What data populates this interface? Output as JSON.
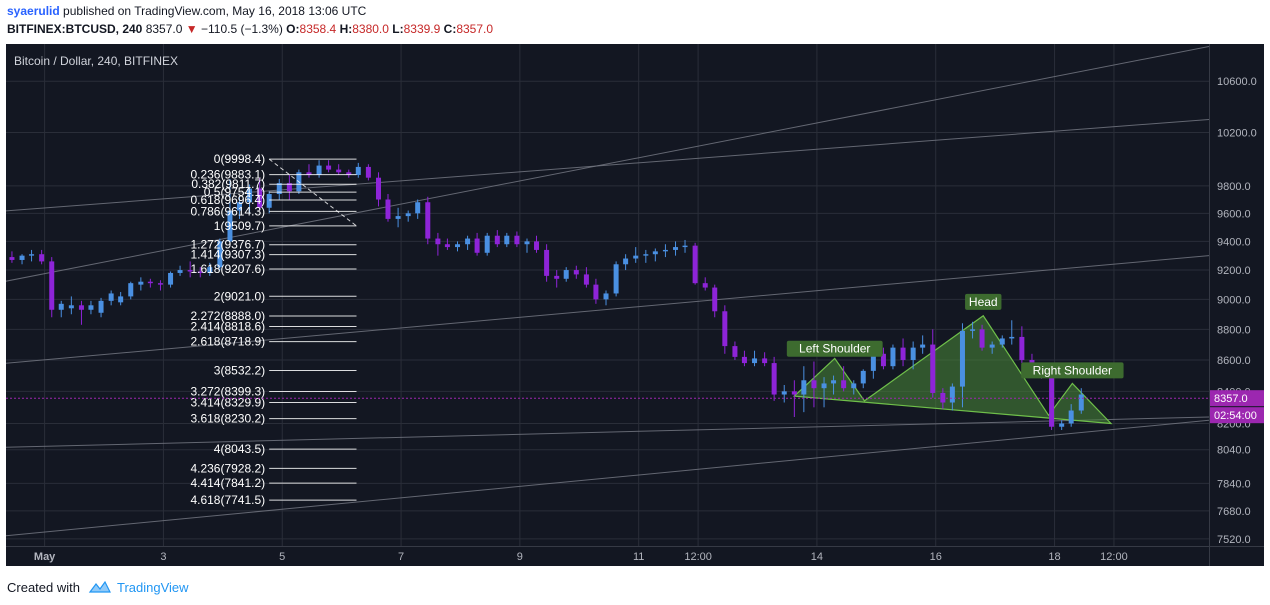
{
  "header": {
    "author": "syaerulid",
    "published": "published on TradingView.com, May 16, 2018 13:06 UTC",
    "symbol": "BITFINEX:BTCUSD, 240",
    "last": "8357.0",
    "change": "−110.5 (−1.3%)",
    "o_label": "O:",
    "o_value": "8358.4",
    "h_label": "H:",
    "h_value": "8380.0",
    "l_label": "L:",
    "l_value": "8339.9",
    "c_label": "C:",
    "c_value": "8357.0"
  },
  "footer": {
    "created_with": "Created with",
    "brand": "TradingView"
  },
  "colors": {
    "background": "#131722",
    "grid": "#2a2e39",
    "text": "#b2b5be",
    "up": "#4a90e2",
    "down": "#8e24d8",
    "pattern_fill": "#4a8a38",
    "pattern_stroke": "#6fbf4a",
    "price_line": "#9c27b0",
    "channel": "#787b86"
  },
  "chart_data": {
    "type": "candlestick",
    "title": "Bitcoin / Dollar, 240, BITFINEX",
    "price_scale": "log",
    "ylim": [
      7480,
      10900
    ],
    "xlim": [
      0.35,
      20.6
    ],
    "y_ticks": [
      7520,
      7680,
      7840,
      8040,
      8200,
      8400,
      8600,
      8800,
      9000,
      9200,
      9400,
      9600,
      9800,
      10200,
      10600
    ],
    "y_tick_labels": [
      "7520.0",
      "7680.0",
      "7840.0",
      "8040.0",
      "8200.0",
      "8400.0",
      "8600.0",
      "8800.0",
      "9000.0",
      "9200.0",
      "9400.0",
      "9600.0",
      "9800.0",
      "10200.0",
      "10600.0"
    ],
    "x_ticks": [
      {
        "x": 1,
        "label": "May"
      },
      {
        "x": 3,
        "label": "3"
      },
      {
        "x": 5,
        "label": "5"
      },
      {
        "x": 7,
        "label": "7"
      },
      {
        "x": 9,
        "label": "9"
      },
      {
        "x": 11,
        "label": "11"
      },
      {
        "x": 12,
        "label": "12:00"
      },
      {
        "x": 14,
        "label": "14"
      },
      {
        "x": 16,
        "label": "16"
      },
      {
        "x": 18,
        "label": "18"
      },
      {
        "x": 19,
        "label": "12:00"
      }
    ],
    "candles": [
      [
        0.45,
        9290,
        9330,
        9250,
        9270
      ],
      [
        0.62,
        9270,
        9310,
        9240,
        9300
      ],
      [
        0.78,
        9300,
        9340,
        9260,
        9310
      ],
      [
        0.95,
        9310,
        9340,
        9240,
        9260
      ],
      [
        1.12,
        9260,
        9290,
        8880,
        8930
      ],
      [
        1.28,
        8930,
        8990,
        8880,
        8970
      ],
      [
        1.45,
        8940,
        9020,
        8900,
        8960
      ],
      [
        1.62,
        8960,
        8990,
        8830,
        8930
      ],
      [
        1.78,
        8930,
        8990,
        8900,
        8960
      ],
      [
        1.95,
        8910,
        9010,
        8880,
        8990
      ],
      [
        2.12,
        8990,
        9060,
        8960,
        9040
      ],
      [
        2.28,
        8980,
        9050,
        8960,
        9020
      ],
      [
        2.45,
        9020,
        9120,
        9000,
        9110
      ],
      [
        2.62,
        9100,
        9150,
        9060,
        9120
      ],
      [
        2.78,
        9120,
        9140,
        9080,
        9110
      ],
      [
        2.95,
        9110,
        9130,
        9060,
        9100
      ],
      [
        3.12,
        9100,
        9190,
        9080,
        9180
      ],
      [
        3.28,
        9180,
        9230,
        9160,
        9200
      ],
      [
        3.45,
        9200,
        9260,
        9150,
        9190
      ],
      [
        3.62,
        9190,
        9220,
        9150,
        9180
      ],
      [
        3.78,
        9180,
        9250,
        9160,
        9220
      ],
      [
        3.95,
        9220,
        9420,
        9200,
        9400
      ],
      [
        4.12,
        9400,
        9850,
        9380,
        9620
      ],
      [
        4.28,
        9620,
        9720,
        9560,
        9680
      ],
      [
        4.45,
        9680,
        9810,
        9600,
        9780
      ],
      [
        4.62,
        9780,
        9860,
        9620,
        9640
      ],
      [
        4.78,
        9640,
        9760,
        9600,
        9740
      ],
      [
        4.95,
        9740,
        9850,
        9700,
        9820
      ],
      [
        5.12,
        9820,
        9880,
        9700,
        9760
      ],
      [
        5.28,
        9760,
        9920,
        9740,
        9900
      ],
      [
        5.45,
        9900,
        9960,
        9860,
        9880
      ],
      [
        5.62,
        9880,
        9990,
        9860,
        9950
      ],
      [
        5.78,
        9950,
        9990,
        9900,
        9920
      ],
      [
        5.95,
        9920,
        9960,
        9880,
        9900
      ],
      [
        6.12,
        9900,
        9920,
        9860,
        9880
      ],
      [
        6.28,
        9880,
        9970,
        9860,
        9940
      ],
      [
        6.45,
        9940,
        9960,
        9840,
        9860
      ],
      [
        6.62,
        9860,
        9900,
        9650,
        9700
      ],
      [
        6.78,
        9700,
        9740,
        9540,
        9560
      ],
      [
        6.95,
        9560,
        9640,
        9500,
        9580
      ],
      [
        7.12,
        9580,
        9620,
        9540,
        9600
      ],
      [
        7.28,
        9600,
        9700,
        9560,
        9680
      ],
      [
        7.45,
        9680,
        9720,
        9380,
        9420
      ],
      [
        7.62,
        9420,
        9460,
        9300,
        9380
      ],
      [
        7.78,
        9380,
        9420,
        9340,
        9360
      ],
      [
        7.95,
        9360,
        9400,
        9330,
        9380
      ],
      [
        8.12,
        9380,
        9440,
        9340,
        9420
      ],
      [
        8.28,
        9420,
        9460,
        9300,
        9320
      ],
      [
        8.45,
        9320,
        9460,
        9300,
        9440
      ],
      [
        8.62,
        9440,
        9480,
        9360,
        9380
      ],
      [
        8.78,
        9380,
        9460,
        9360,
        9440
      ],
      [
        8.95,
        9440,
        9470,
        9360,
        9380
      ],
      [
        9.12,
        9380,
        9420,
        9320,
        9400
      ],
      [
        9.28,
        9400,
        9440,
        9320,
        9340
      ],
      [
        9.45,
        9340,
        9380,
        9120,
        9160
      ],
      [
        9.62,
        9160,
        9200,
        9080,
        9140
      ],
      [
        9.78,
        9140,
        9220,
        9120,
        9200
      ],
      [
        9.95,
        9200,
        9230,
        9140,
        9170
      ],
      [
        10.12,
        9170,
        9220,
        9080,
        9100
      ],
      [
        10.28,
        9100,
        9140,
        8970,
        9000
      ],
      [
        10.45,
        9000,
        9060,
        8960,
        9040
      ],
      [
        10.62,
        9040,
        9260,
        9020,
        9240
      ],
      [
        10.78,
        9240,
        9310,
        9200,
        9280
      ],
      [
        10.95,
        9280,
        9360,
        9250,
        9300
      ],
      [
        11.12,
        9300,
        9340,
        9250,
        9310
      ],
      [
        11.28,
        9310,
        9350,
        9260,
        9330
      ],
      [
        11.45,
        9330,
        9380,
        9290,
        9340
      ],
      [
        11.62,
        9340,
        9400,
        9300,
        9360
      ],
      [
        11.78,
        9360,
        9410,
        9320,
        9370
      ],
      [
        11.95,
        9370,
        9390,
        9100,
        9110
      ],
      [
        12.12,
        9110,
        9150,
        9060,
        9080
      ],
      [
        12.28,
        9080,
        9100,
        8880,
        8920
      ],
      [
        12.45,
        8920,
        8960,
        8640,
        8690
      ],
      [
        12.62,
        8690,
        8720,
        8600,
        8620
      ],
      [
        12.78,
        8620,
        8660,
        8560,
        8580
      ],
      [
        12.95,
        8580,
        8660,
        8560,
        8610
      ],
      [
        13.12,
        8610,
        8650,
        8560,
        8580
      ],
      [
        13.28,
        8580,
        8620,
        8340,
        8380
      ],
      [
        13.45,
        8380,
        8440,
        8330,
        8400
      ],
      [
        13.62,
        8400,
        8470,
        8240,
        8380
      ],
      [
        13.78,
        8380,
        8560,
        8270,
        8470
      ],
      [
        13.95,
        8470,
        8590,
        8300,
        8420
      ],
      [
        14.12,
        8420,
        8490,
        8300,
        8450
      ],
      [
        14.28,
        8450,
        8500,
        8380,
        8470
      ],
      [
        14.45,
        8470,
        8560,
        8400,
        8420
      ],
      [
        14.62,
        8420,
        8470,
        8380,
        8450
      ],
      [
        14.78,
        8450,
        8540,
        8420,
        8530
      ],
      [
        14.95,
        8530,
        8660,
        8480,
        8640
      ],
      [
        15.12,
        8640,
        8680,
        8540,
        8560
      ],
      [
        15.28,
        8560,
        8700,
        8540,
        8680
      ],
      [
        15.45,
        8680,
        8740,
        8560,
        8600
      ],
      [
        15.62,
        8600,
        8720,
        8540,
        8680
      ],
      [
        15.78,
        8680,
        8760,
        8640,
        8700
      ],
      [
        15.95,
        8700,
        8800,
        8360,
        8390
      ],
      [
        16.12,
        8390,
        8420,
        8290,
        8330
      ],
      [
        16.28,
        8330,
        8450,
        8280,
        8430
      ],
      [
        16.45,
        8430,
        8840,
        8300,
        8790
      ],
      [
        16.62,
        8790,
        8850,
        8740,
        8800
      ],
      [
        16.78,
        8800,
        8830,
        8660,
        8680
      ],
      [
        16.95,
        8680,
        8720,
        8640,
        8700
      ],
      [
        17.12,
        8700,
        8760,
        8680,
        8740
      ],
      [
        17.28,
        8740,
        8860,
        8700,
        8750
      ],
      [
        17.45,
        8750,
        8820,
        8580,
        8600
      ],
      [
        17.62,
        8600,
        8640,
        8500,
        8540
      ],
      [
        17.78,
        8540,
        8560,
        8480,
        8500
      ],
      [
        17.95,
        8500,
        8520,
        8160,
        8180
      ],
      [
        18.12,
        8180,
        8220,
        8160,
        8200
      ],
      [
        18.28,
        8200,
        8320,
        8180,
        8280
      ],
      [
        18.45,
        8280,
        8420,
        8260,
        8380
      ]
    ],
    "fibonacci": {
      "levels": [
        {
          "label": "0(9998.4)",
          "price": 9998.4
        },
        {
          "label": "0.236(9883.1)",
          "price": 9883.1
        },
        {
          "label": "0.382(9811.7)",
          "price": 9811.7
        },
        {
          "label": "0.5(9754.1)",
          "price": 9754.1
        },
        {
          "label": "0.618(9696.4)",
          "price": 9696.4
        },
        {
          "label": "0.786(9614.3)",
          "price": 9614.3
        },
        {
          "label": "1(9509.7)",
          "price": 9509.7
        },
        {
          "label": "1.272(9376.7)",
          "price": 9376.7
        },
        {
          "label": "1.414(9307.3)",
          "price": 9307.3
        },
        {
          "label": "1.618(9207.6)",
          "price": 9207.6
        },
        {
          "label": "2(9021.0)",
          "price": 9021.0
        },
        {
          "label": "2.272(8888.0)",
          "price": 8888.0
        },
        {
          "label": "2.414(8818.6)",
          "price": 8818.6
        },
        {
          "label": "2.618(8718.9)",
          "price": 8718.9
        },
        {
          "label": "3(8532.2)",
          "price": 8532.2
        },
        {
          "label": "3.272(8399.3)",
          "price": 8399.3
        },
        {
          "label": "3.414(8329.9)",
          "price": 8329.9
        },
        {
          "label": "3.618(8230.2)",
          "price": 8230.2
        },
        {
          "label": "4(8043.5)",
          "price": 8043.5
        },
        {
          "label": "4.236(7928.2)",
          "price": 7928.2
        },
        {
          "label": "4.414(7841.2)",
          "price": 7841.2
        },
        {
          "label": "4.618(7741.5)",
          "price": 7741.5
        }
      ],
      "x_from": 4.78,
      "x_to": 6.25
    },
    "pattern": {
      "points": [
        [
          13.62,
          8370
        ],
        [
          14.3,
          8610
        ],
        [
          14.8,
          8340
        ],
        [
          16.8,
          8890
        ],
        [
          17.9,
          8250
        ],
        [
          18.3,
          8450
        ],
        [
          18.95,
          8200
        ]
      ],
      "labels": [
        {
          "text": "Left Shoulder",
          "x": 14.3,
          "price": 8660
        },
        {
          "text": "Head",
          "x": 16.8,
          "price": 8970
        },
        {
          "text": "Right Shoulder",
          "x": 18.3,
          "price": 8520
        }
      ]
    },
    "channel_lines": [
      [
        [
          -0.2,
          9600
        ],
        [
          20.6,
          10300
        ]
      ],
      [
        [
          -0.2,
          9080
        ],
        [
          20.6,
          10880
        ]
      ],
      [
        [
          -0.2,
          8560
        ],
        [
          20.6,
          9300
        ]
      ],
      [
        [
          -0.2,
          8050
        ],
        [
          20.6,
          8240
        ]
      ],
      [
        [
          -0.2,
          7520
        ],
        [
          20.6,
          8220
        ]
      ]
    ],
    "price_line": 8357.0,
    "badges": {
      "price": "8357.0",
      "countdown": "02:54:00"
    }
  }
}
